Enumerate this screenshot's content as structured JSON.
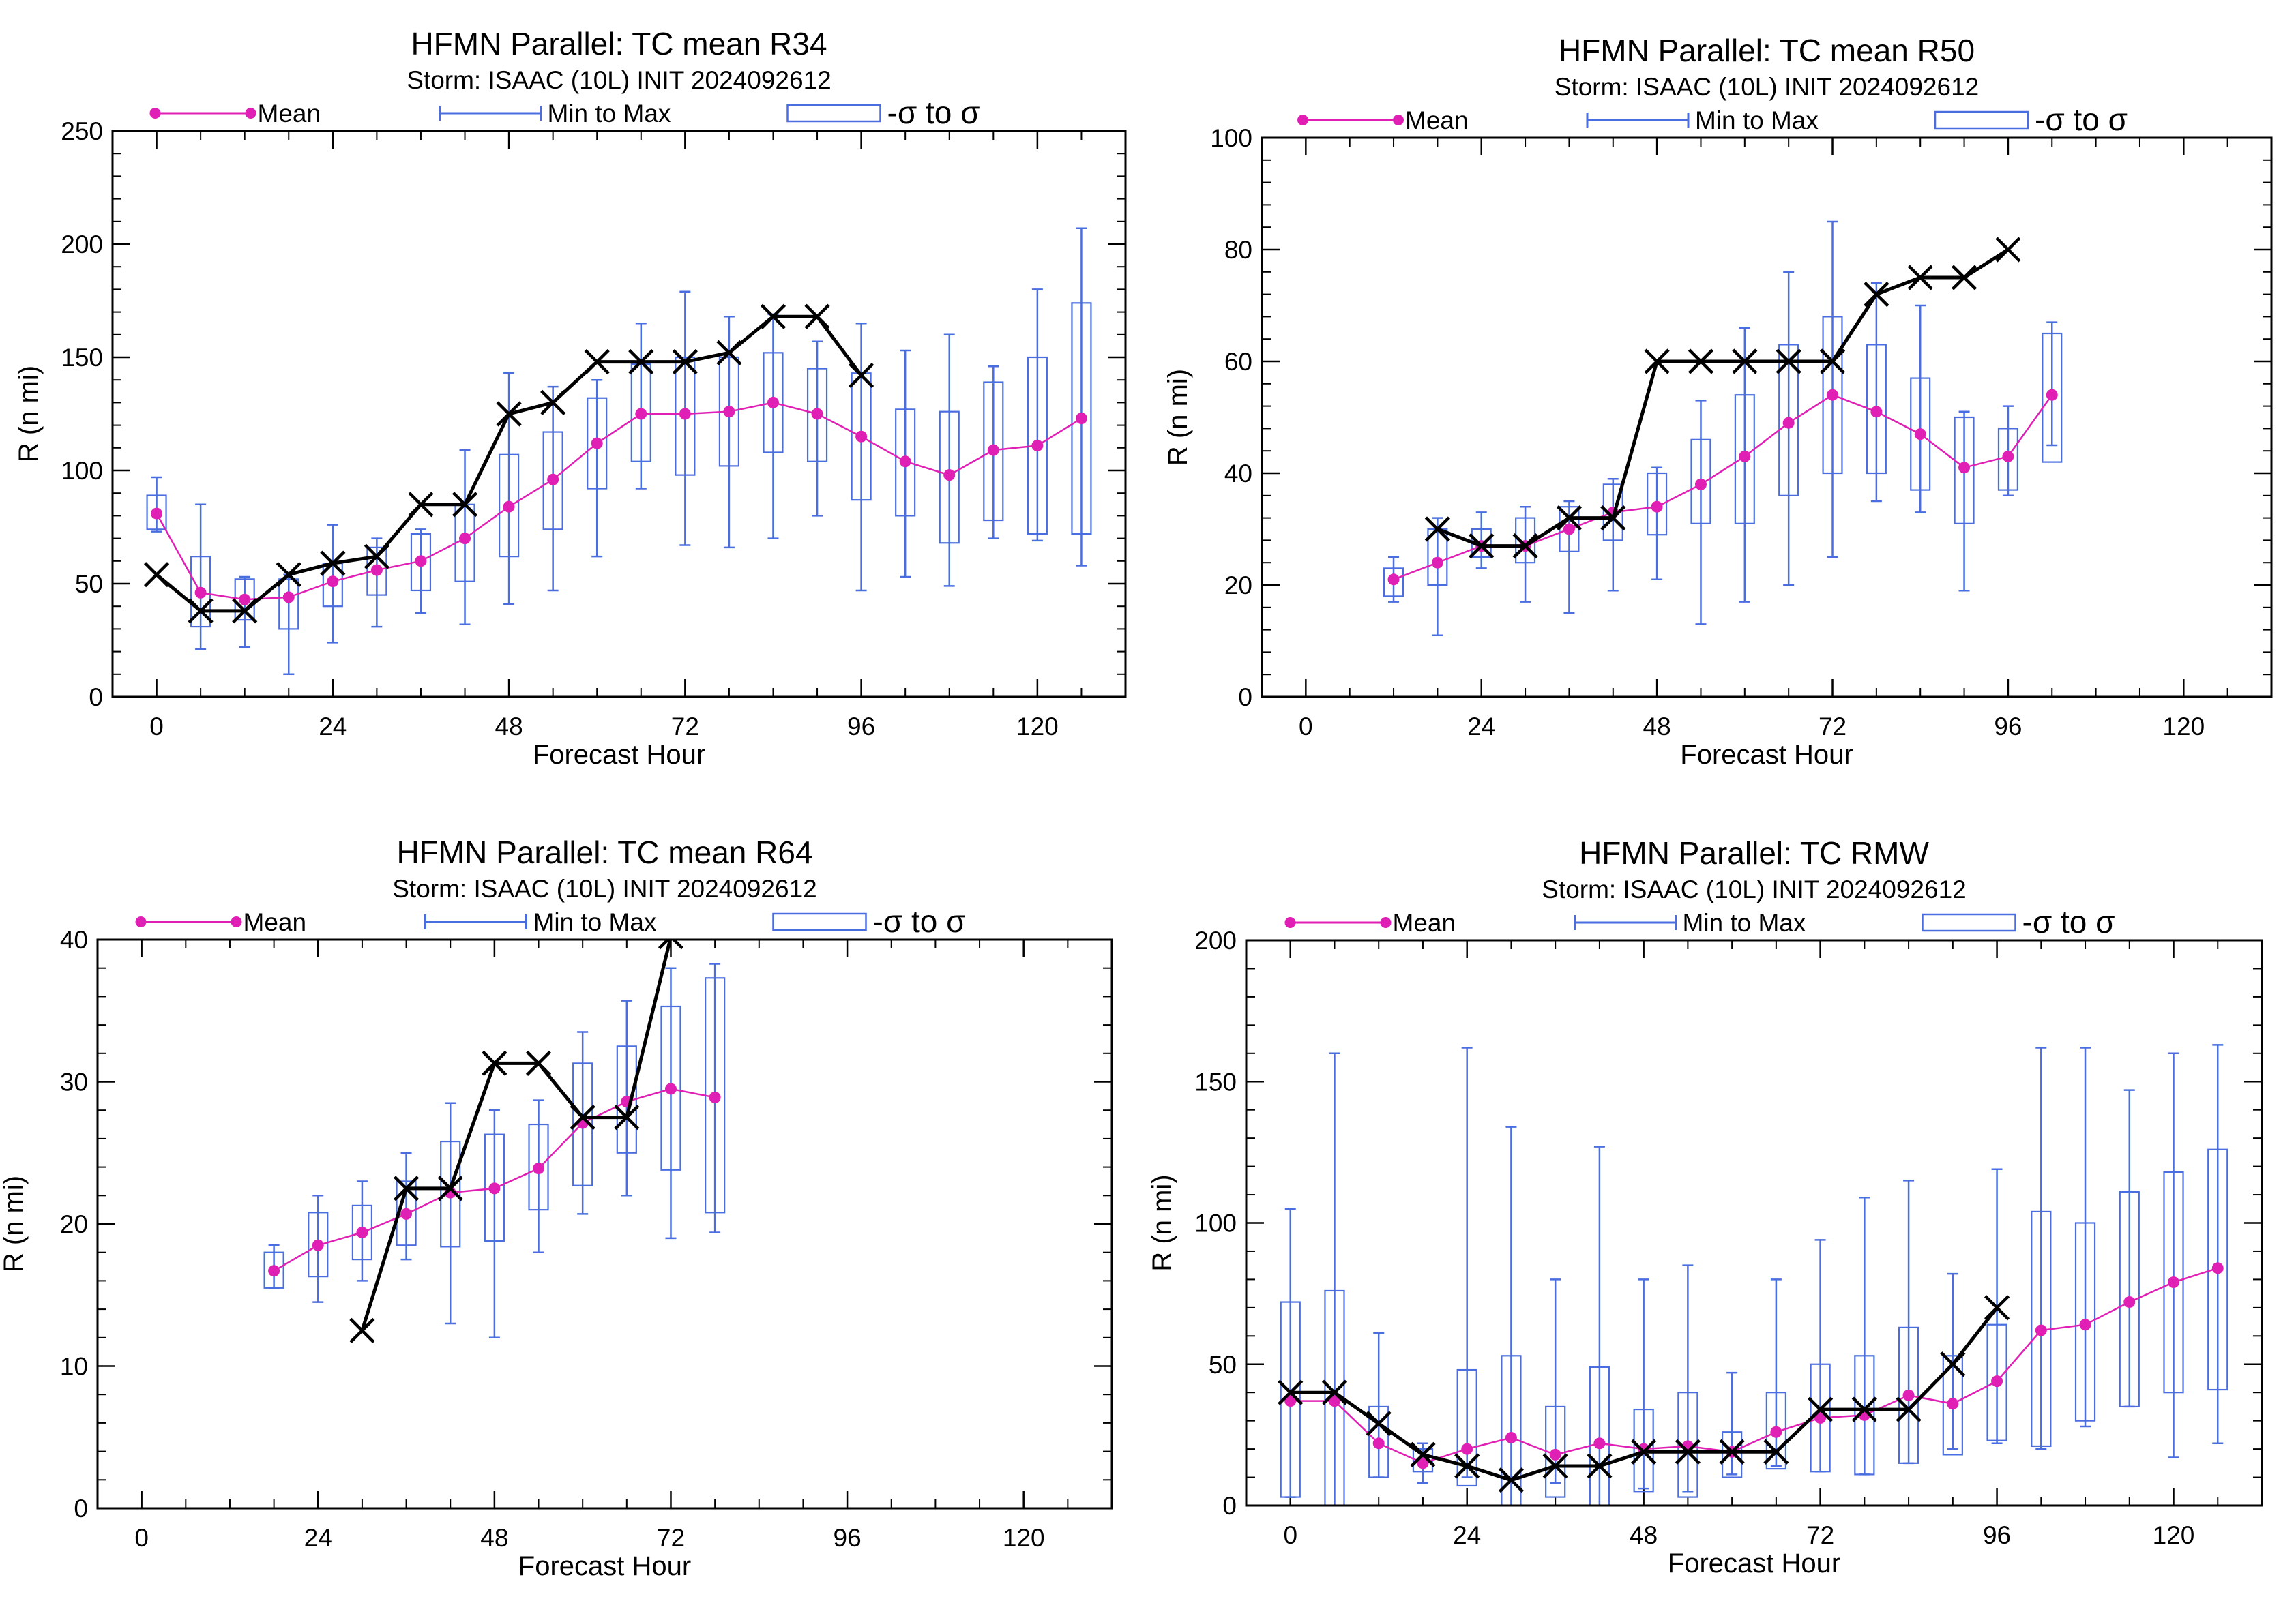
{
  "colors": {
    "mean": "#e020b4",
    "box": "#4a6ee0",
    "actual": "#000000",
    "axis": "#000000"
  },
  "chart_data": [
    {
      "type": "box",
      "title": "HFMN Parallel: TC mean R34",
      "subtitle": "Storm: ISAAC (10L) INIT 2024092612",
      "xlabel": "Forecast Hour",
      "ylabel": "R (n mi)",
      "xlim": [
        -6,
        132
      ],
      "ylim": [
        0,
        250
      ],
      "xticks": [
        0,
        24,
        48,
        72,
        96,
        120
      ],
      "yticks": [
        0,
        50,
        100,
        150,
        200,
        250
      ],
      "legend": [
        "Mean",
        "Min to Max",
        "-σ to σ"
      ],
      "mean": {
        "x": [
          0,
          6,
          12,
          18,
          24,
          30,
          36,
          42,
          48,
          54,
          60,
          66,
          72,
          78,
          84,
          90,
          96,
          102,
          108,
          114,
          120,
          126
        ],
        "y": [
          81,
          46,
          43,
          44,
          51,
          56,
          60,
          70,
          84,
          96,
          112,
          125,
          125,
          126,
          130,
          125,
          115,
          104,
          98,
          109,
          111,
          123
        ]
      },
      "minmax": [
        [
          73,
          97
        ],
        [
          21,
          85
        ],
        [
          22,
          53
        ],
        [
          10,
          54
        ],
        [
          24,
          76
        ],
        [
          31,
          70
        ],
        [
          37,
          74
        ],
        [
          32,
          109
        ],
        [
          41,
          143
        ],
        [
          47,
          137
        ],
        [
          62,
          140
        ],
        [
          92,
          165
        ],
        [
          67,
          179
        ],
        [
          66,
          168
        ],
        [
          70,
          169
        ],
        [
          80,
          157
        ],
        [
          47,
          165
        ],
        [
          53,
          153
        ],
        [
          49,
          160
        ],
        [
          70,
          146
        ],
        [
          69,
          180
        ],
        [
          58,
          207
        ]
      ],
      "sigma": [
        [
          74,
          89
        ],
        [
          31,
          62
        ],
        [
          34,
          52
        ],
        [
          30,
          52
        ],
        [
          40,
          59
        ],
        [
          45,
          66
        ],
        [
          47,
          72
        ],
        [
          51,
          85
        ],
        [
          62,
          107
        ],
        [
          74,
          117
        ],
        [
          92,
          132
        ],
        [
          104,
          147
        ],
        [
          98,
          150
        ],
        [
          102,
          150
        ],
        [
          108,
          152
        ],
        [
          104,
          145
        ],
        [
          87,
          143
        ],
        [
          80,
          127
        ],
        [
          68,
          126
        ],
        [
          78,
          139
        ],
        [
          72,
          150
        ],
        [
          72,
          174
        ]
      ],
      "actual": {
        "x": [
          0,
          6,
          12,
          18,
          24,
          30,
          36,
          42,
          48,
          54,
          60,
          66,
          72,
          78,
          84,
          90,
          96
        ],
        "y": [
          54,
          38,
          38,
          54,
          59,
          62,
          85,
          85,
          125,
          130,
          148,
          148,
          148,
          152,
          168,
          168,
          142
        ]
      }
    },
    {
      "type": "box",
      "title": "HFMN Parallel: TC mean R50",
      "subtitle": "Storm: ISAAC (10L) INIT 2024092612",
      "xlabel": "Forecast Hour",
      "ylabel": "R (n mi)",
      "xlim": [
        -6,
        132
      ],
      "ylim": [
        0,
        100
      ],
      "xticks": [
        0,
        24,
        48,
        72,
        96,
        120
      ],
      "yticks": [
        0,
        20,
        40,
        60,
        80,
        100
      ],
      "legend": [
        "Mean",
        "Min to Max",
        "-σ to σ"
      ],
      "mean": {
        "x": [
          12,
          18,
          24,
          30,
          36,
          42,
          48,
          54,
          60,
          66,
          72,
          78,
          84,
          90,
          96,
          102
        ],
        "y": [
          21,
          24,
          27,
          27,
          30,
          33,
          34,
          38,
          43,
          49,
          54,
          51,
          47,
          41,
          43,
          54
        ]
      },
      "minmax": [
        [
          17,
          25
        ],
        [
          11,
          32
        ],
        [
          23,
          33
        ],
        [
          17,
          34
        ],
        [
          15,
          35
        ],
        [
          19,
          39
        ],
        [
          21,
          41
        ],
        [
          13,
          53
        ],
        [
          17,
          66
        ],
        [
          20,
          76
        ],
        [
          25,
          85
        ],
        [
          35,
          74
        ],
        [
          33,
          70
        ],
        [
          19,
          51
        ],
        [
          36,
          52
        ],
        [
          45,
          67
        ]
      ],
      "sigma": [
        [
          18,
          23
        ],
        [
          20,
          30
        ],
        [
          25,
          30
        ],
        [
          24,
          32
        ],
        [
          26,
          34
        ],
        [
          28,
          38
        ],
        [
          29,
          40
        ],
        [
          31,
          46
        ],
        [
          31,
          54
        ],
        [
          36,
          63
        ],
        [
          40,
          68
        ],
        [
          40,
          63
        ],
        [
          37,
          57
        ],
        [
          31,
          50
        ],
        [
          37,
          48
        ],
        [
          42,
          65
        ]
      ],
      "actual": {
        "x": [
          18,
          24,
          30,
          36,
          42,
          48,
          54,
          60,
          66,
          72,
          78,
          84,
          90,
          96
        ],
        "y": [
          30,
          27,
          27,
          32,
          32,
          60,
          60,
          60,
          60,
          60,
          72,
          75,
          75,
          80
        ]
      }
    },
    {
      "type": "box",
      "title": "HFMN Parallel: TC mean R64",
      "subtitle": "Storm: ISAAC (10L) INIT 2024092612",
      "xlabel": "Forecast Hour",
      "ylabel": "R (n mi)",
      "xlim": [
        -6,
        132
      ],
      "ylim": [
        0,
        40
      ],
      "xticks": [
        0,
        24,
        48,
        72,
        96,
        120
      ],
      "yticks": [
        0,
        10,
        20,
        30,
        40
      ],
      "legend": [
        "Mean",
        "Min to Max",
        "-σ to σ"
      ],
      "mean": {
        "x": [
          18,
          24,
          30,
          36,
          42,
          48,
          54,
          60,
          66,
          72,
          78
        ],
        "y": [
          16.7,
          18.5,
          19.4,
          20.7,
          22.2,
          22.5,
          23.9,
          27.1,
          28.6,
          29.5,
          28.9
        ]
      },
      "minmax": [
        [
          15.5,
          18.5
        ],
        [
          14.5,
          22
        ],
        [
          16,
          23
        ],
        [
          17.5,
          25
        ],
        [
          13,
          28.5
        ],
        [
          12,
          28
        ],
        [
          18,
          28.7
        ],
        [
          20.7,
          33.5
        ],
        [
          22,
          35.7
        ],
        [
          19,
          38
        ],
        [
          19.4,
          38.3
        ]
      ],
      "sigma": [
        [
          15.5,
          18.0
        ],
        [
          16.3,
          20.8
        ],
        [
          17.5,
          21.3
        ],
        [
          18.5,
          23.0
        ],
        [
          18.4,
          25.8
        ],
        [
          18.8,
          26.3
        ],
        [
          21.0,
          27.0
        ],
        [
          22.7,
          31.3
        ],
        [
          25.0,
          32.5
        ],
        [
          23.8,
          35.3
        ],
        [
          20.8,
          37.3
        ]
      ],
      "actual": {
        "x": [
          30,
          36,
          42,
          48,
          54,
          60,
          66,
          72
        ],
        "y": [
          12.5,
          22.5,
          22.5,
          31.3,
          31.3,
          27.5,
          27.5,
          40.2
        ]
      }
    },
    {
      "type": "box",
      "title": "HFMN Parallel: TC RMW",
      "subtitle": "Storm: ISAAC (10L) INIT 2024092612",
      "xlabel": "Forecast Hour",
      "ylabel": "R (n mi)",
      "xlim": [
        -6,
        132
      ],
      "ylim": [
        0,
        200
      ],
      "xticks": [
        0,
        24,
        48,
        72,
        96,
        120
      ],
      "yticks": [
        0,
        50,
        100,
        150,
        200
      ],
      "legend": [
        "Mean",
        "Min to Max",
        "-σ to σ"
      ],
      "mean": {
        "x": [
          0,
          6,
          12,
          18,
          24,
          30,
          36,
          42,
          48,
          54,
          60,
          66,
          72,
          78,
          84,
          90,
          96,
          102,
          108,
          114,
          120,
          126
        ],
        "y": [
          37,
          37,
          22,
          15,
          20,
          24,
          18,
          22,
          20,
          21,
          19,
          26,
          31,
          32,
          39,
          36,
          44,
          62,
          64,
          72,
          79,
          84
        ]
      },
      "minmax": [
        [
          3,
          105
        ],
        [
          -4,
          160
        ],
        [
          10,
          61
        ],
        [
          8,
          22
        ],
        [
          10,
          162
        ],
        [
          -2,
          134
        ],
        [
          8,
          80
        ],
        [
          -2,
          127
        ],
        [
          6,
          80
        ],
        [
          5,
          85
        ],
        [
          11,
          47
        ],
        [
          14,
          80
        ],
        [
          12,
          94
        ],
        [
          11,
          109
        ],
        [
          15,
          115
        ],
        [
          20,
          82
        ],
        [
          22,
          119
        ],
        [
          20,
          162
        ],
        [
          28,
          162
        ],
        [
          35,
          147
        ],
        [
          17,
          160
        ],
        [
          22,
          163
        ]
      ],
      "sigma": [
        [
          3,
          72
        ],
        [
          -4,
          76
        ],
        [
          10,
          35
        ],
        [
          12,
          20
        ],
        [
          7,
          48
        ],
        [
          -5,
          53
        ],
        [
          3,
          35
        ],
        [
          -4,
          49
        ],
        [
          5,
          34
        ],
        [
          3,
          40
        ],
        [
          10,
          26
        ],
        [
          13,
          40
        ],
        [
          12,
          50
        ],
        [
          11,
          53
        ],
        [
          15,
          63
        ],
        [
          18,
          53
        ],
        [
          23,
          64
        ],
        [
          21,
          104
        ],
        [
          30,
          100
        ],
        [
          35,
          111
        ],
        [
          40,
          118
        ],
        [
          41,
          126
        ]
      ],
      "actual": {
        "x": [
          0,
          6,
          12,
          18,
          24,
          30,
          36,
          42,
          48,
          54,
          60,
          66,
          72,
          78,
          84,
          90,
          96
        ],
        "y": [
          40,
          40,
          29,
          18,
          14,
          9,
          14,
          14,
          19,
          19,
          19,
          19,
          34,
          34,
          34,
          50,
          70
        ]
      }
    }
  ]
}
